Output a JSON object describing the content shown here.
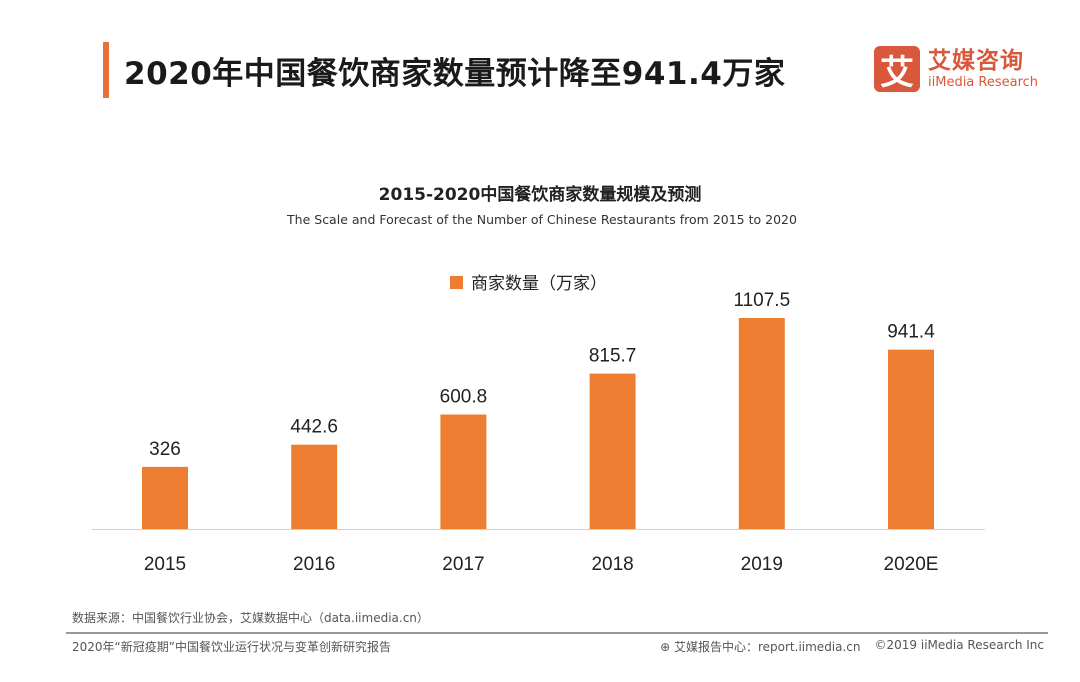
{
  "header": {
    "title": "2020年中国餐饮商家数量预计降至941.4万家"
  },
  "logo": {
    "mark": "艾",
    "name_cn": "艾媒咨询",
    "name_en": "iiMedia Research"
  },
  "colors": {
    "accent": "#e8703a",
    "bar": "#ed7d31",
    "logo": "#d9573b"
  },
  "chart_data": {
    "type": "bar",
    "title": "2015-2020中国餐饮商家数量规模及预测",
    "subtitle": "The Scale and Forecast of the Number of Chinese Restaurants from 2015 to 2020",
    "categories": [
      "2015",
      "2016",
      "2017",
      "2018",
      "2019",
      "2020E"
    ],
    "series": [
      {
        "name": "商家数量（万家）",
        "values": [
          326,
          442.6,
          600.8,
          815.7,
          1107.5,
          941.4
        ]
      }
    ],
    "data_labels": [
      "326",
      "442.6",
      "600.8",
      "815.7",
      "1107.5",
      "941.4"
    ],
    "legend_position": "top-center",
    "grid": false,
    "ylim": [
      0,
      1200
    ]
  },
  "footer": {
    "source": "数据来源：中国餐饮行业协会，艾媒数据中心（data.iimedia.cn）",
    "report": "2020年“新冠疫期”中国餐饮业运行状况与变革创新研究报告",
    "site": "艾媒报告中心：report.iimedia.cn",
    "copyright": "©2019  iiMedia Research  Inc"
  }
}
